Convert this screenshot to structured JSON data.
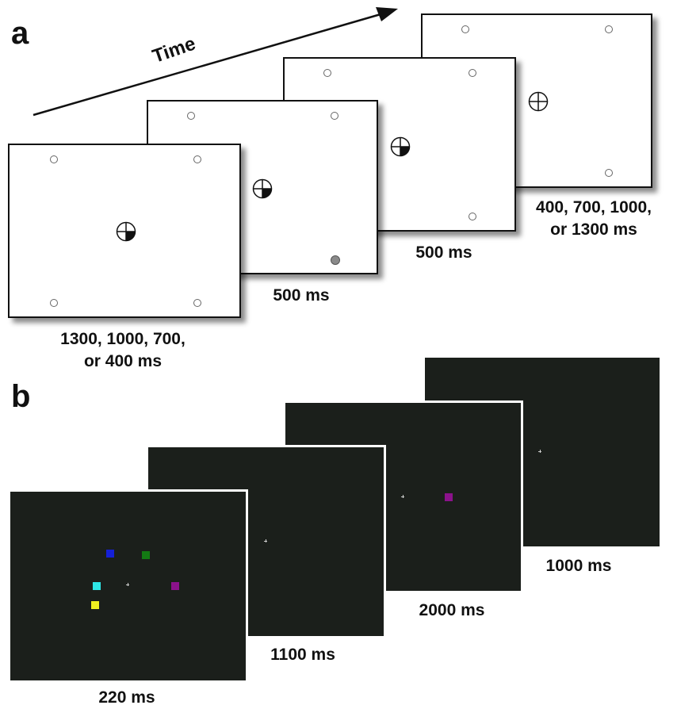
{
  "panels": {
    "a": {
      "letter": "a",
      "time_label": "Time",
      "captions": [
        "1300, 1000, 700,\nor 400 ms",
        "500 ms",
        "500 ms",
        "400, 700, 1000,\nor 1300 ms"
      ]
    },
    "b": {
      "letter": "b",
      "captions": [
        "220 ms",
        "1100 ms",
        "2000 ms",
        "1000 ms"
      ]
    }
  },
  "colors": {
    "background": "#ffffff",
    "dark_screen": "#1b1f1b",
    "blue": "#1520d6",
    "green": "#137a13",
    "cyan": "#2ee6e6",
    "purple": "#8b128b",
    "yellow": "#f0f020",
    "gray_target": "#8a8a8a"
  }
}
